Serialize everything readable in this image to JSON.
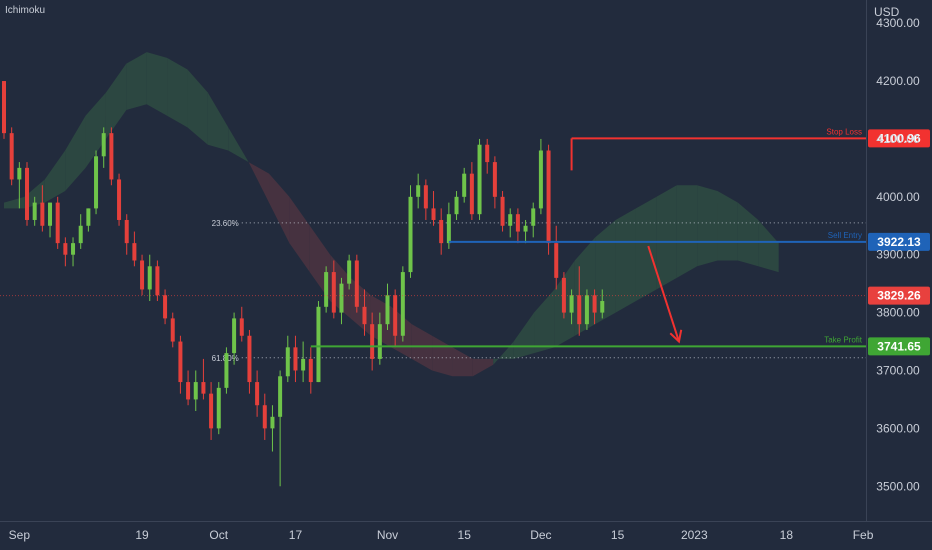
{
  "indicator_label": "Ichimoku",
  "currency": "USD",
  "colors": {
    "background": "#222b3d",
    "up": "#6fc44a",
    "down": "#e5403b",
    "kumo_bull": "#2e4a41",
    "kumo_bear": "#4a3340",
    "stop": "#f23230",
    "entry": "#1f63b8",
    "tp": "#3fa634",
    "current": "#e8413e",
    "axis_text": "#c9ced8",
    "fib": "#c9ced8"
  },
  "chart_data": {
    "type": "candlestick",
    "title": "",
    "xlabel": "",
    "ylabel": "USD",
    "ylim": [
      3440,
      4340
    ],
    "y_ticks": [
      3500,
      3600,
      3700,
      3800,
      3900,
      4000,
      4100,
      4200,
      4300
    ],
    "y_tick_labels": [
      "3500.00",
      "3600.00",
      "3700.00",
      "3800.00",
      "3900.00",
      "4000.00",
      "4100.00",
      "4200.00",
      "4300.00"
    ],
    "x_ticks": [
      {
        "label": "Sep",
        "bar": 2
      },
      {
        "label": "19",
        "bar": 18
      },
      {
        "label": "Oct",
        "bar": 28
      },
      {
        "label": "17",
        "bar": 38
      },
      {
        "label": "Nov",
        "bar": 50
      },
      {
        "label": "15",
        "bar": 60
      },
      {
        "label": "Dec",
        "bar": 70
      },
      {
        "label": "15",
        "bar": 80
      },
      {
        "label": "2023",
        "bar": 90
      },
      {
        "label": "18",
        "bar": 102
      },
      {
        "label": "Feb",
        "bar": 112
      }
    ],
    "candles_ohlc": [
      [
        4200,
        4200,
        4100,
        4110
      ],
      [
        4110,
        4120,
        4020,
        4030
      ],
      [
        4030,
        4060,
        3980,
        4050
      ],
      [
        4050,
        4060,
        3950,
        3960
      ],
      [
        3960,
        4000,
        3950,
        3990
      ],
      [
        3990,
        4020,
        3940,
        3950
      ],
      [
        3950,
        3990,
        3930,
        3990
      ],
      [
        3990,
        4000,
        3910,
        3920
      ],
      [
        3920,
        3930,
        3880,
        3900
      ],
      [
        3900,
        3930,
        3880,
        3920
      ],
      [
        3920,
        3970,
        3910,
        3950
      ],
      [
        3950,
        3980,
        3940,
        3980
      ],
      [
        3980,
        4080,
        3970,
        4070
      ],
      [
        4070,
        4120,
        4050,
        4110
      ],
      [
        4110,
        4120,
        4020,
        4030
      ],
      [
        4030,
        4040,
        3950,
        3960
      ],
      [
        3960,
        3970,
        3900,
        3920
      ],
      [
        3920,
        3940,
        3880,
        3890
      ],
      [
        3890,
        3900,
        3830,
        3840
      ],
      [
        3840,
        3900,
        3820,
        3880
      ],
      [
        3880,
        3890,
        3820,
        3830
      ],
      [
        3830,
        3840,
        3780,
        3790
      ],
      [
        3790,
        3800,
        3740,
        3750
      ],
      [
        3750,
        3760,
        3660,
        3680
      ],
      [
        3680,
        3700,
        3640,
        3650
      ],
      [
        3650,
        3700,
        3630,
        3680
      ],
      [
        3680,
        3720,
        3650,
        3660
      ],
      [
        3660,
        3680,
        3580,
        3600
      ],
      [
        3600,
        3680,
        3590,
        3670
      ],
      [
        3670,
        3740,
        3660,
        3730
      ],
      [
        3730,
        3800,
        3710,
        3790
      ],
      [
        3790,
        3810,
        3750,
        3760
      ],
      [
        3760,
        3770,
        3660,
        3680
      ],
      [
        3680,
        3700,
        3620,
        3640
      ],
      [
        3640,
        3660,
        3580,
        3600
      ],
      [
        3600,
        3640,
        3560,
        3620
      ],
      [
        3620,
        3700,
        3500,
        3690
      ],
      [
        3690,
        3760,
        3680,
        3740
      ],
      [
        3740,
        3760,
        3680,
        3700
      ],
      [
        3700,
        3750,
        3680,
        3720
      ],
      [
        3720,
        3740,
        3660,
        3680
      ],
      [
        3680,
        3820,
        3680,
        3810
      ],
      [
        3810,
        3880,
        3800,
        3870
      ],
      [
        3870,
        3890,
        3790,
        3800
      ],
      [
        3800,
        3860,
        3780,
        3850
      ],
      [
        3850,
        3900,
        3840,
        3890
      ],
      [
        3890,
        3900,
        3800,
        3810
      ],
      [
        3810,
        3840,
        3760,
        3780
      ],
      [
        3780,
        3800,
        3700,
        3720
      ],
      [
        3720,
        3800,
        3710,
        3780
      ],
      [
        3780,
        3850,
        3770,
        3830
      ],
      [
        3830,
        3840,
        3740,
        3760
      ],
      [
        3760,
        3880,
        3750,
        3870
      ],
      [
        3870,
        4020,
        3860,
        4000
      ],
      [
        4000,
        4040,
        3980,
        4020
      ],
      [
        4020,
        4030,
        3960,
        3980
      ],
      [
        3980,
        4010,
        3950,
        3960
      ],
      [
        3960,
        3980,
        3900,
        3920
      ],
      [
        3920,
        3990,
        3910,
        3970
      ],
      [
        3970,
        4010,
        3960,
        4000
      ],
      [
        4000,
        4050,
        3990,
        4040
      ],
      [
        4040,
        4060,
        3960,
        3970
      ],
      [
        3970,
        4100,
        3960,
        4090
      ],
      [
        4090,
        4100,
        4040,
        4060
      ],
      [
        4060,
        4070,
        3980,
        4000
      ],
      [
        4000,
        4010,
        3940,
        3950
      ],
      [
        3950,
        3980,
        3930,
        3970
      ],
      [
        3970,
        3980,
        3920,
        3940
      ],
      [
        3940,
        3960,
        3920,
        3950
      ],
      [
        3950,
        3990,
        3930,
        3980
      ],
      [
        3980,
        4100,
        3970,
        4080
      ],
      [
        4080,
        4090,
        3900,
        3920
      ],
      [
        3920,
        3950,
        3840,
        3860
      ],
      [
        3860,
        3870,
        3790,
        3800
      ],
      [
        3800,
        3840,
        3780,
        3830
      ],
      [
        3830,
        3880,
        3760,
        3780
      ],
      [
        3780,
        3840,
        3770,
        3830
      ],
      [
        3830,
        3840,
        3780,
        3800
      ],
      [
        3800,
        3840,
        3790,
        3820
      ]
    ],
    "ichimoku_cloud": {
      "start_bar": 0,
      "senkou_a": [
        3990,
        4000,
        4030,
        4080,
        4140,
        4180,
        4230,
        4250,
        4240,
        4220,
        4180,
        4120,
        4060,
        3990,
        3920,
        3870,
        3820,
        3790,
        3760,
        3740,
        3720,
        3700,
        3690,
        3690,
        3710,
        3750,
        3800,
        3840,
        3890,
        3930,
        3960,
        3980,
        4000,
        4020,
        4020,
        4010,
        3990,
        3960,
        3920
      ],
      "senkou_b": [
        3980,
        3980,
        3990,
        4010,
        4050,
        4100,
        4150,
        4160,
        4140,
        4120,
        4090,
        4080,
        4060,
        4040,
        4000,
        3950,
        3900,
        3860,
        3830,
        3810,
        3780,
        3760,
        3740,
        3720,
        3720,
        3720,
        3730,
        3740,
        3760,
        3780,
        3800,
        3820,
        3840,
        3860,
        3880,
        3890,
        3890,
        3880,
        3870
      ]
    },
    "levels": [
      {
        "name": "Stop Loss",
        "value": 4100.96,
        "label": "4100.96",
        "color_key": "stop",
        "start_bar": 74
      },
      {
        "name": "Sell Entry",
        "value": 3922.13,
        "label": "3922.13",
        "color_key": "entry",
        "start_bar": 58
      },
      {
        "name": "Take Profit",
        "value": 3741.65,
        "label": "3741.65",
        "color_key": "tp",
        "start_bar": 40
      }
    ],
    "current_price": {
      "value": 3829.26,
      "label": "3829.26"
    },
    "fib_levels": [
      {
        "label": "23.60%",
        "value": 3955,
        "start_bar": 31
      },
      {
        "label": "61.80%",
        "value": 3722,
        "start_bar": 31
      }
    ],
    "arrow": {
      "from_bar": 84,
      "from_value": 3915,
      "to_bar": 88,
      "to_value": 3750
    }
  }
}
